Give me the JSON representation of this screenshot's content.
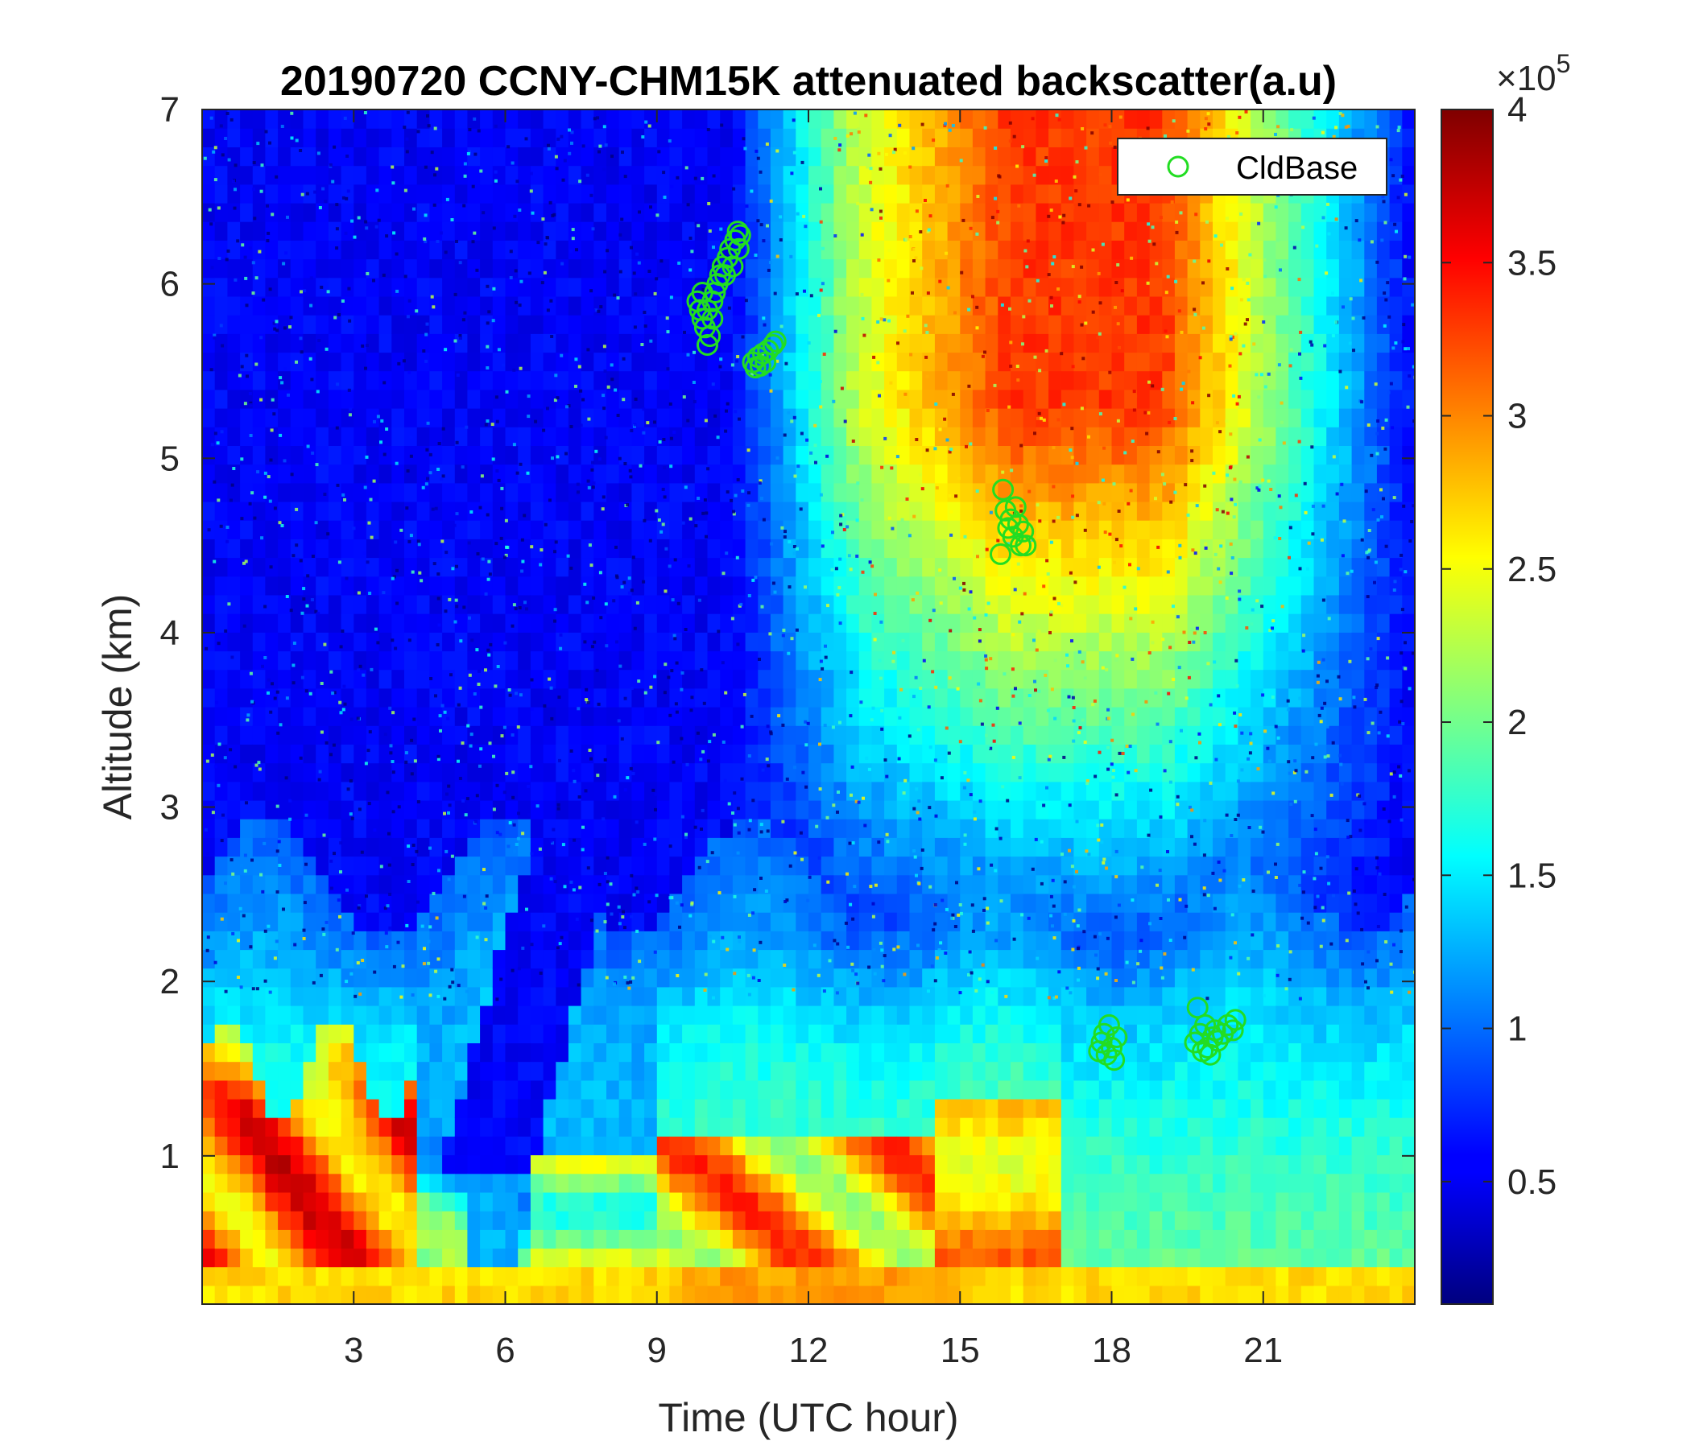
{
  "chart_data": {
    "type": "heatmap",
    "title": "20190720 CCNY-CHM15K attenuated backscatter(a.u)",
    "xlabel": "Time (UTC hour)",
    "ylabel": "Altitude (km)",
    "xlim": [
      0,
      24
    ],
    "ylim": [
      0.15,
      7
    ],
    "xticks": [
      3,
      6,
      9,
      12,
      15,
      18,
      21
    ],
    "yticks": [
      1,
      2,
      3,
      4,
      5,
      6,
      7
    ],
    "colorbar": {
      "colormap": "jet",
      "clim": [
        0.1,
        4
      ],
      "ticks": [
        0.5,
        1,
        1.5,
        2,
        2.5,
        3,
        3.5,
        4
      ],
      "tick_labels": [
        "0.5",
        "1",
        "1.5",
        "2",
        "2.5",
        "3",
        "3.5",
        "4"
      ],
      "multiplier_base": "×10",
      "multiplier_exp": "5"
    },
    "legend": {
      "placement": "top-right",
      "entries": [
        "CldBase"
      ]
    },
    "cloud_base_series": {
      "name": "CldBase",
      "color": "#22dd22",
      "points": [
        [
          9.8,
          5.9
        ],
        [
          9.85,
          5.85
        ],
        [
          9.9,
          5.8
        ],
        [
          9.95,
          5.75
        ],
        [
          10.0,
          5.65
        ],
        [
          10.05,
          5.7
        ],
        [
          10.1,
          5.9
        ],
        [
          10.15,
          5.95
        ],
        [
          10.2,
          6.0
        ],
        [
          10.25,
          6.05
        ],
        [
          10.3,
          6.1
        ],
        [
          10.35,
          6.05
        ],
        [
          10.4,
          6.15
        ],
        [
          10.45,
          6.2
        ],
        [
          10.5,
          6.1
        ],
        [
          10.55,
          6.25
        ],
        [
          10.6,
          6.3
        ],
        [
          10.62,
          6.2
        ],
        [
          10.65,
          6.28
        ],
        [
          9.9,
          5.95
        ],
        [
          10.0,
          5.85
        ],
        [
          10.1,
          5.8
        ],
        [
          10.9,
          5.55
        ],
        [
          10.95,
          5.52
        ],
        [
          11.0,
          5.58
        ],
        [
          11.05,
          5.53
        ],
        [
          11.1,
          5.6
        ],
        [
          11.15,
          5.55
        ],
        [
          11.2,
          5.62
        ],
        [
          11.3,
          5.65
        ],
        [
          11.35,
          5.67
        ],
        [
          15.8,
          4.45
        ],
        [
          15.85,
          4.82
        ],
        [
          15.9,
          4.7
        ],
        [
          15.95,
          4.6
        ],
        [
          16.0,
          4.65
        ],
        [
          16.05,
          4.55
        ],
        [
          16.1,
          4.72
        ],
        [
          16.15,
          4.62
        ],
        [
          16.2,
          4.5
        ],
        [
          16.25,
          4.58
        ],
        [
          16.3,
          4.5
        ],
        [
          17.75,
          1.6
        ],
        [
          17.8,
          1.65
        ],
        [
          17.85,
          1.7
        ],
        [
          17.9,
          1.58
        ],
        [
          17.95,
          1.75
        ],
        [
          18.0,
          1.62
        ],
        [
          18.05,
          1.55
        ],
        [
          18.1,
          1.68
        ],
        [
          19.65,
          1.65
        ],
        [
          19.7,
          1.85
        ],
        [
          19.75,
          1.7
        ],
        [
          19.8,
          1.6
        ],
        [
          19.85,
          1.75
        ],
        [
          19.9,
          1.62
        ],
        [
          19.95,
          1.58
        ],
        [
          20.0,
          1.68
        ],
        [
          20.05,
          1.72
        ],
        [
          20.1,
          1.66
        ],
        [
          20.2,
          1.7
        ],
        [
          20.3,
          1.75
        ],
        [
          20.4,
          1.72
        ],
        [
          20.45,
          1.78
        ]
      ]
    }
  }
}
